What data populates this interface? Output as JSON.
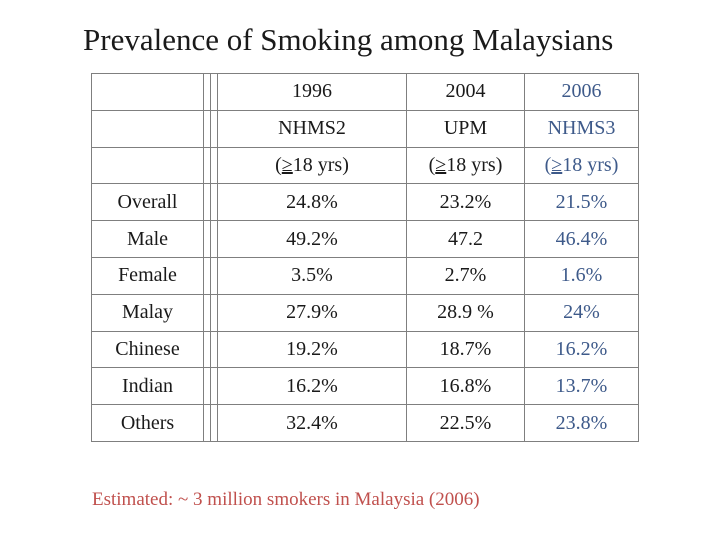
{
  "title": "Prevalence of Smoking among Malaysians",
  "colors": {
    "title": "#1a1a1a",
    "highlight_column": "#3e5a8a",
    "note": "#c0504d",
    "grid": "#7f7f7f"
  },
  "header": {
    "years": [
      "1996",
      "2004",
      "2006"
    ],
    "sources": [
      "NHMS2",
      "UPM",
      "NHMS3"
    ],
    "age_prefix": [
      "(",
      "(",
      "("
    ],
    "age_sign": [
      "≥",
      "≥",
      "≥"
    ],
    "age_rest": [
      "18 yrs)",
      "18 yrs)",
      "18 yrs)"
    ]
  },
  "rows": [
    {
      "label": "Overall",
      "values": [
        "24.8%",
        "23.2%",
        "21.5%"
      ]
    },
    {
      "label": "Male",
      "values": [
        "49.2%",
        "47.2",
        "46.4%"
      ]
    },
    {
      "label": "Female",
      "values": [
        "3.5%",
        "2.7%",
        "1.6%"
      ]
    },
    {
      "label": "Malay",
      "values": [
        "27.9%",
        "28.9 %",
        "24%"
      ]
    },
    {
      "label": "Chinese",
      "values": [
        "19.2%",
        "18.7%",
        "16.2%"
      ]
    },
    {
      "label": "Indian",
      "values": [
        "16.2%",
        "16.8%",
        "13.7%"
      ]
    },
    {
      "label": "Others",
      "values": [
        "32.4%",
        "22.5%",
        "23.8%"
      ]
    }
  ],
  "note": "Estimated: ~ 3 million smokers in Malaysia (2006)"
}
